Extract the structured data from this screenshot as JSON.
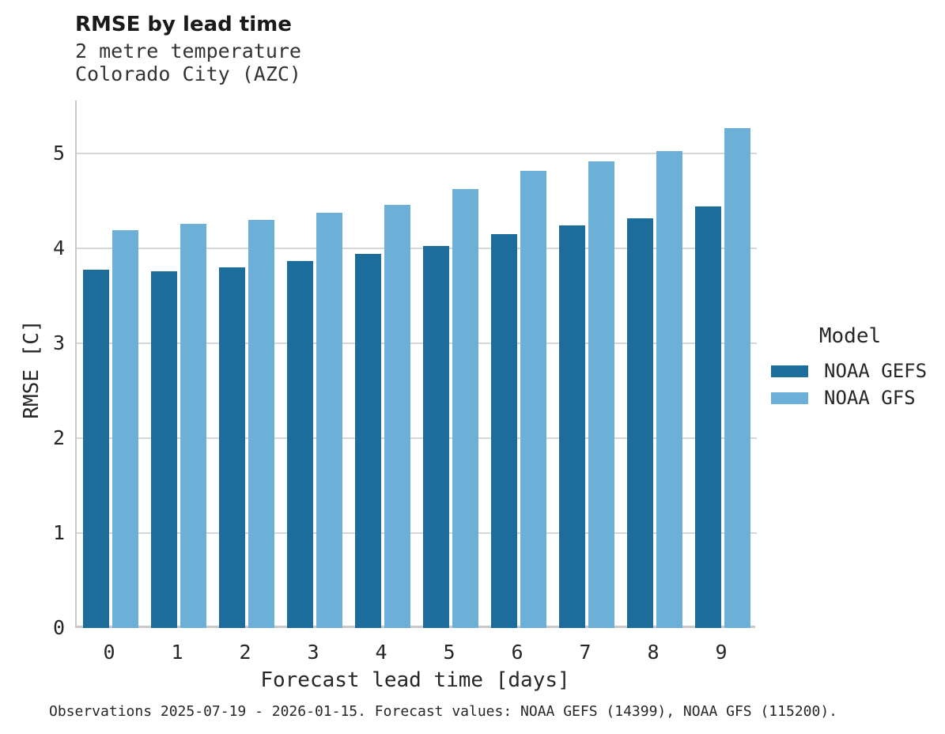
{
  "header": {
    "title": "RMSE by lead time",
    "subtitle_line1": "2 metre temperature",
    "subtitle_line2": "Colorado City (AZC)"
  },
  "chart_data": {
    "type": "bar",
    "title": "RMSE by lead time",
    "subtitle": [
      "2 metre temperature",
      "Colorado City (AZC)"
    ],
    "xlabel": "Forecast lead time [days]",
    "ylabel": "RMSE [C]",
    "categories": [
      "0",
      "1",
      "2",
      "3",
      "4",
      "5",
      "6",
      "7",
      "8",
      "9"
    ],
    "series": [
      {
        "name": "NOAA GEFS",
        "color": "#1c6d9c",
        "values": [
          3.78,
          3.76,
          3.8,
          3.87,
          3.94,
          4.03,
          4.15,
          4.24,
          4.32,
          4.44
        ]
      },
      {
        "name": "NOAA GFS",
        "color": "#6cb0d8",
        "values": [
          4.19,
          4.26,
          4.3,
          4.38,
          4.46,
          4.63,
          4.82,
          4.92,
          5.03,
          5.27
        ]
      }
    ],
    "ylim": [
      0,
      5.56
    ],
    "yticks": [
      0,
      1,
      2,
      3,
      4,
      5
    ],
    "grid": "horizontal",
    "legend_title": "Model",
    "legend_position": "right"
  },
  "legend": {
    "title": "Model"
  },
  "footer": {
    "note": "Observations 2025-07-19 - 2026-01-15. Forecast values: NOAA GEFS (14399), NOAA GFS (115200)."
  },
  "colors": {
    "grid": "#d7d7d7",
    "spine": "#c9c9c9",
    "text": "#262626",
    "title": "#1a1a1a"
  }
}
